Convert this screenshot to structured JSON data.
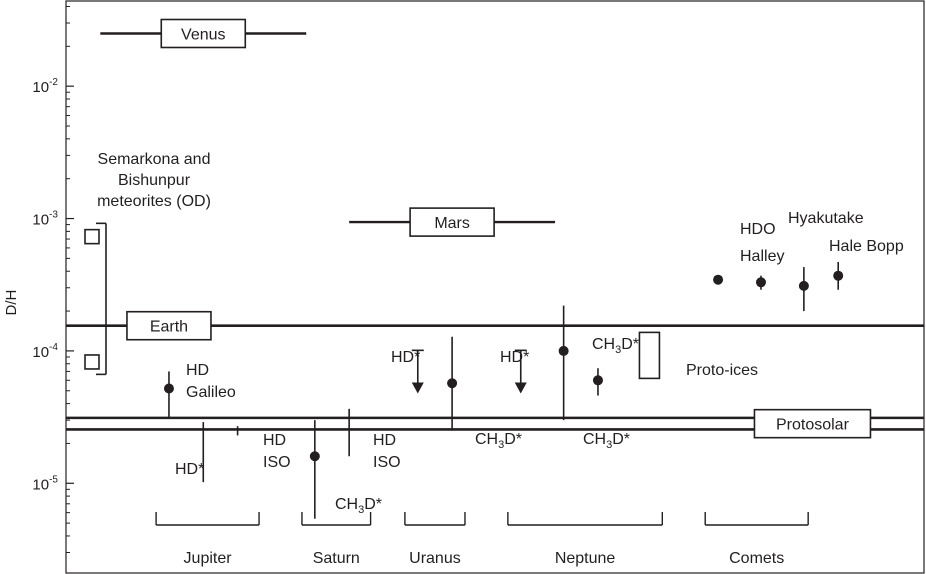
{
  "chart_data": {
    "type": "scatter",
    "title": "",
    "xlabel": "",
    "ylabel": "D/H",
    "yscale": "log",
    "ylim": [
      2.1e-06,
      0.044
    ],
    "yticks": [
      {
        "label": "10",
        "exp": "-2",
        "value": 0.01
      },
      {
        "label": "10",
        "exp": "-3",
        "value": 0.001
      },
      {
        "label": "10",
        "exp": "-4",
        "value": 0.0001
      },
      {
        "label": "10",
        "exp": "-5",
        "value": 1e-05
      }
    ],
    "x_units": "category position (0-100)",
    "categories": [
      {
        "name": "Jupiter",
        "x_from": 10.5,
        "x_to": 22.5
      },
      {
        "name": "Saturn",
        "x_from": 27.5,
        "x_to": 35.5
      },
      {
        "name": "Uranus",
        "x_from": 39.5,
        "x_to": 46.5
      },
      {
        "name": "Neptune",
        "x_from": 51.5,
        "x_to": 69.5
      },
      {
        "name": "Comets",
        "x_from": 74.5,
        "x_to": 86.5
      }
    ],
    "reference_bands": [
      {
        "label": "Venus",
        "value": 0.025,
        "x_from": 4,
        "x_to": 28
      },
      {
        "label": "Mars",
        "value": 0.00094,
        "x_from": 33,
        "x_to": 57
      },
      {
        "label": "Earth",
        "value": 0.000155,
        "x_from": 0,
        "x_to": 100,
        "label_x": 12
      },
      {
        "label": "Protosolar",
        "value": 2.55e-05,
        "value2": 3.12e-05,
        "x_from": 0,
        "x_to": 100,
        "label_x": 87
      }
    ],
    "range_boxes": [
      {
        "label": "Semarkona and Bishunpur meteorites (OD)",
        "low": 8.25e-05,
        "high": 0.00073
      },
      {
        "label": "Proto-ices",
        "low": 6.2e-05,
        "high": 0.000138,
        "x": 68
      }
    ],
    "measurements": [
      {
        "target": "Jupiter",
        "species": "HD",
        "instrument": "Galileo",
        "x": 12,
        "value": 5.2e-05,
        "low": 3.1e-05,
        "high": 7e-05
      },
      {
        "target": "Jupiter",
        "species": "HD*",
        "x": 16,
        "low": 1.02e-05,
        "high": 2.9e-05
      },
      {
        "target": "Jupiter",
        "species": "HD",
        "instrument": "ISO",
        "x": 20,
        "low": 2.3e-05,
        "high": 2.7e-05
      },
      {
        "target": "Saturn",
        "species": "CH3D*",
        "x": 29,
        "value": 1.6e-05,
        "low": 5.4e-06,
        "high": 3e-05
      },
      {
        "target": "Saturn",
        "species": "HD",
        "instrument": "ISO",
        "x": 33,
        "low": 1.6e-05,
        "high": 3.65e-05
      },
      {
        "target": "Uranus",
        "species": "HD*",
        "x": 41,
        "upper_limit": 0.000101
      },
      {
        "target": "Uranus",
        "species": "CH3D*",
        "x": 45,
        "value": 5.7e-05,
        "low": 2.5e-05,
        "high": 0.000128
      },
      {
        "target": "Neptune",
        "species": "HD*",
        "x": 53,
        "upper_limit": 0.000101
      },
      {
        "target": "Neptune",
        "species": "CH3D*",
        "x": 58,
        "value": 0.0001,
        "low": 3e-05,
        "high": 0.00022
      },
      {
        "target": "Neptune",
        "species": "CH3D*",
        "x": 62,
        "value": 6e-05,
        "low": 4.6e-05,
        "high": 7.4e-05
      },
      {
        "target": "Comets",
        "name": "Halley",
        "species": "HDO",
        "x": 76,
        "value": 0.000345,
        "low": 0.000327,
        "high": 0.000363
      },
      {
        "target": "Comets",
        "name": "Hyakutake",
        "x": 81,
        "value": 0.00033,
        "low": 0.00029,
        "high": 0.00037
      },
      {
        "target": "Comets",
        "name": "Hyakutake",
        "x": 86,
        "value": 0.00031,
        "low": 0.0002,
        "high": 0.00043
      },
      {
        "target": "Comets",
        "name": "Hale Bopp",
        "x": 90,
        "value": 0.00037,
        "low": 0.00029,
        "high": 0.00047
      }
    ],
    "annotations": [
      {
        "lines": [
          "Semarkona and",
          "Bishunpur",
          "meteorites (OD)"
        ]
      },
      {
        "lines": [
          "HD",
          "Galileo"
        ]
      },
      {
        "lines": [
          "HD*"
        ]
      },
      {
        "lines": [
          "HD",
          "ISO"
        ]
      },
      {
        "lines": [
          "CH3D*"
        ],
        "parts": [
          "CH",
          "3",
          "D*"
        ]
      },
      {
        "lines": [
          "HD",
          "ISO"
        ]
      },
      {
        "lines": [
          "HD*"
        ]
      },
      {
        "lines": [
          "CH3D*"
        ],
        "parts": [
          "CH",
          "3",
          "D*"
        ]
      },
      {
        "lines": [
          "HD*"
        ]
      },
      {
        "lines": [
          "CH3D*"
        ],
        "parts": [
          "CH",
          "3",
          "D*"
        ]
      },
      {
        "lines": [
          "CH3D*"
        ],
        "parts": [
          "CH",
          "3",
          "D*"
        ]
      },
      {
        "lines": [
          "Proto-ices"
        ]
      },
      {
        "lines": [
          "HDO"
        ]
      },
      {
        "lines": [
          "Halley"
        ]
      },
      {
        "lines": [
          "Hyakutake"
        ]
      },
      {
        "lines": [
          "Hale Bopp"
        ]
      }
    ]
  }
}
